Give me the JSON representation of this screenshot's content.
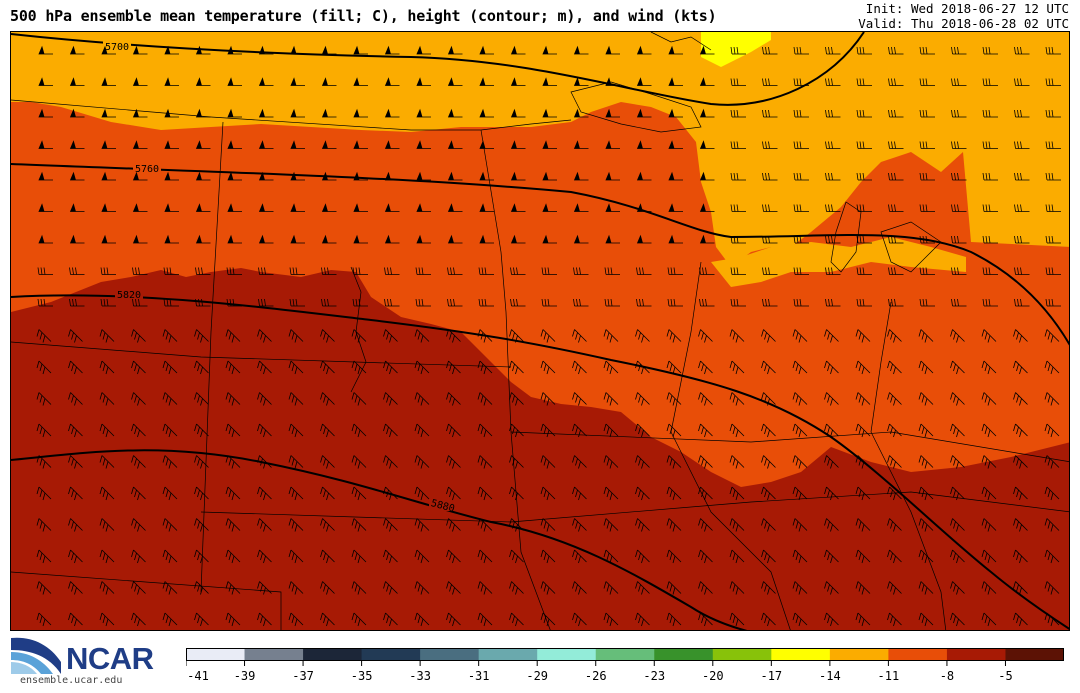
{
  "header": {
    "title": "500 hPa ensemble mean temperature (fill; C), height (contour; m), and wind (kts)",
    "init": "Init: Wed 2018-06-27 12 UTC",
    "valid": "Valid: Thu 2018-06-28 02 UTC"
  },
  "logo": {
    "name": "NCAR",
    "url": "ensemble.ucar.edu"
  },
  "map": {
    "contours": [
      {
        "label": "5700"
      },
      {
        "label": "5760"
      },
      {
        "label": "5820"
      },
      {
        "label": "5880"
      }
    ],
    "fill_colors": {
      "warm_-5_0": "#a71a05",
      "mid_-8_-5": "#e84e08",
      "cool_-11_-8": "#fbac00",
      "cold_-14_-11": "#ffff00"
    }
  },
  "colorbar": {
    "ticks": [
      "-41",
      "-39",
      "-37",
      "-35",
      "-33",
      "-31",
      "-29",
      "-26",
      "-23",
      "-20",
      "-17",
      "-14",
      "-11",
      "-8",
      "-5"
    ],
    "colors": [
      "#e9ecf6",
      "#76808f",
      "#1c2638",
      "#223a55",
      "#4a6e80",
      "#6aa9ad",
      "#93ecd9",
      "#66be7a",
      "#38922b",
      "#88c20a",
      "#ffff00",
      "#fbac00",
      "#e84e08",
      "#a71a05",
      "#5c1205"
    ]
  }
}
